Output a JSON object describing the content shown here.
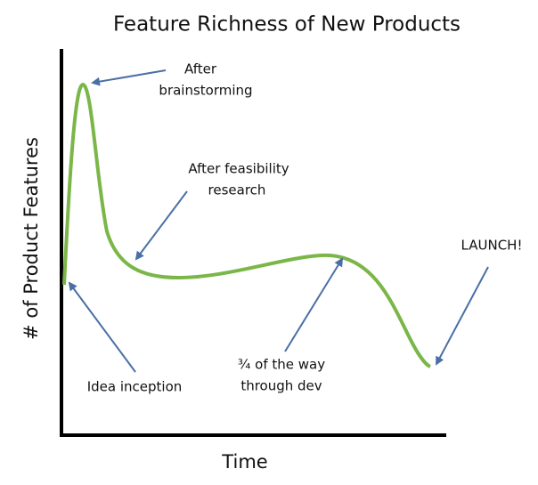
{
  "title": "Feature Richness of New Products",
  "axes": {
    "y_label": "# of Product Features",
    "x_label": "Time"
  },
  "annotations": [
    {
      "lines": [
        "After",
        "brainstorming"
      ]
    },
    {
      "lines": [
        "After feasibility",
        "research"
      ]
    },
    {
      "lines": [
        "Idea inception"
      ]
    },
    {
      "lines": [
        "¾ of the way",
        "through dev"
      ]
    },
    {
      "lines": [
        "LAUNCH!"
      ]
    }
  ]
}
